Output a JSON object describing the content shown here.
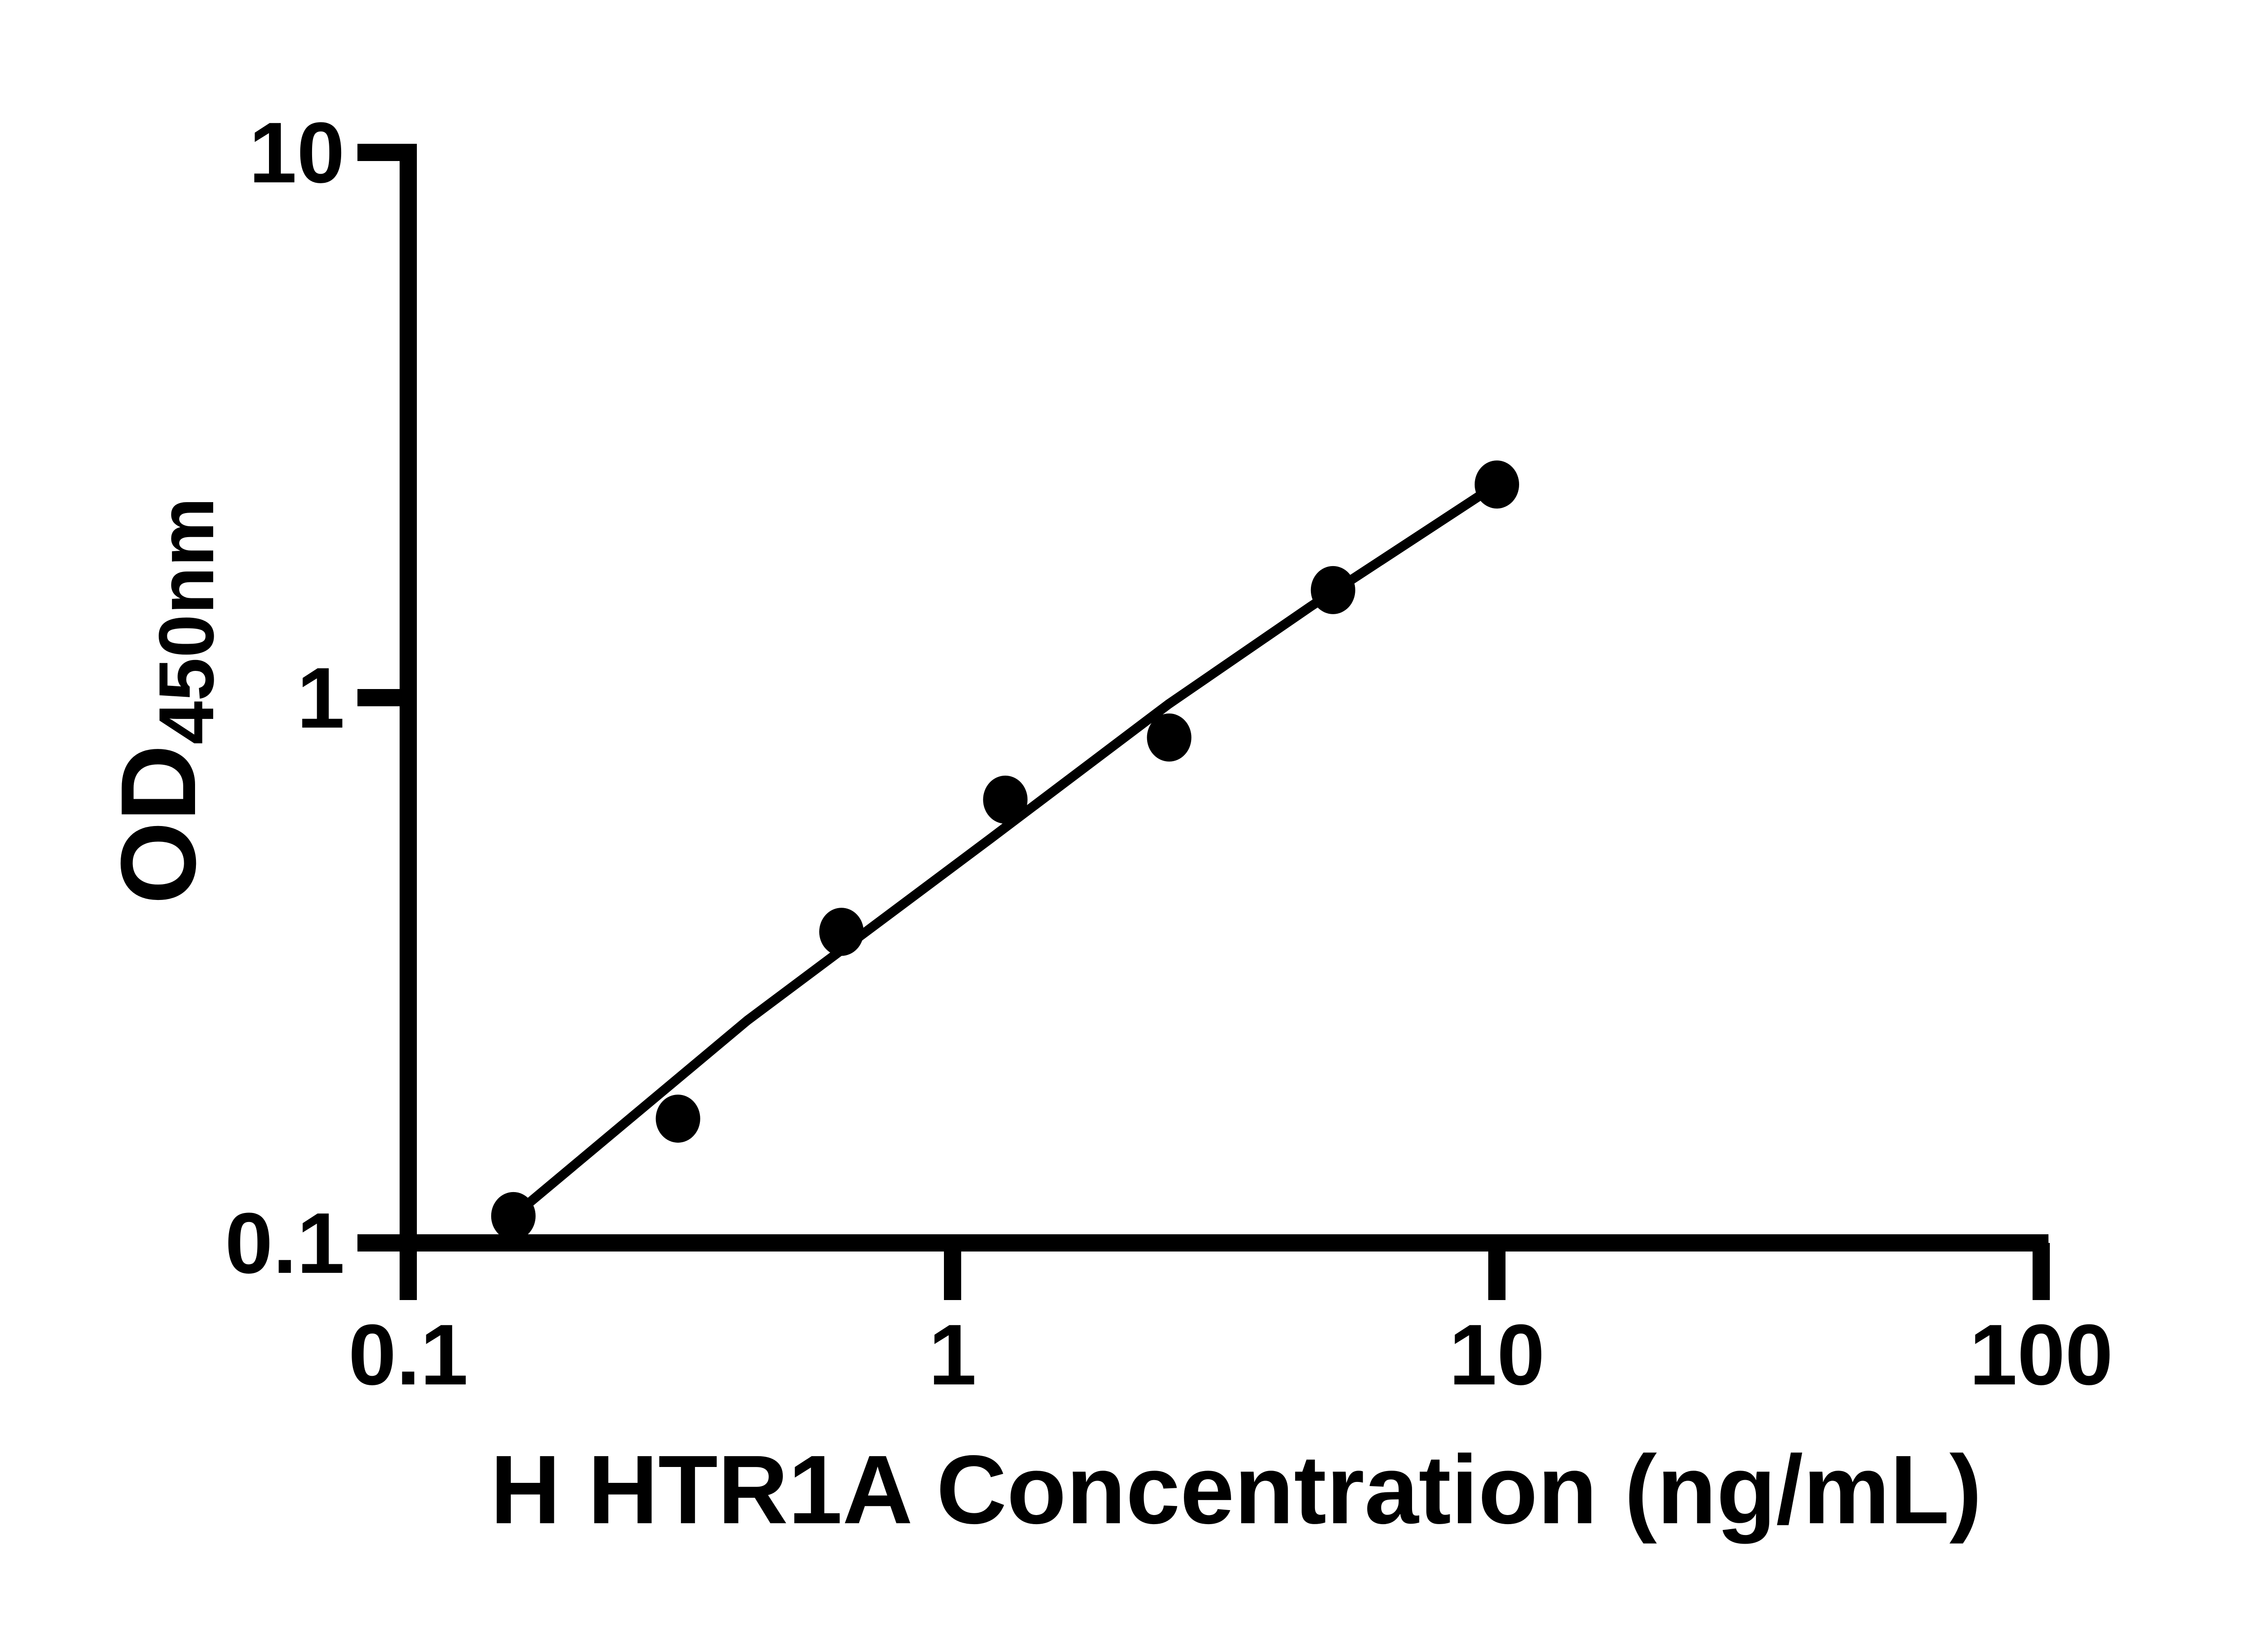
{
  "figure": {
    "background_color": "#ffffff",
    "ink_color": "#000000"
  },
  "chart_data": {
    "type": "scatter",
    "title": "",
    "xlabel": "H HTR1A Concentration (ng/mL)",
    "ylabel_main": "OD",
    "ylabel_sub": "450nm",
    "x_scale": "log",
    "y_scale": "log",
    "xlim": [
      0.1,
      100
    ],
    "ylim": [
      0.1,
      10
    ],
    "grid": false,
    "legend": null,
    "x_ticks": [
      {
        "value": 0.1,
        "label": "0.1"
      },
      {
        "value": 1,
        "label": "1"
      },
      {
        "value": 10,
        "label": "10"
      },
      {
        "value": 100,
        "label": "100"
      }
    ],
    "y_ticks": [
      {
        "value": 10,
        "label": "10"
      },
      {
        "value": 1,
        "label": "1"
      },
      {
        "value": 0.1,
        "label": "0.1"
      }
    ],
    "series": [
      {
        "name": "standard-points",
        "type": "scatter",
        "marker": "filled-circle",
        "points": [
          {
            "x": 0.156,
            "y": 0.112
          },
          {
            "x": 0.313,
            "y": 0.169
          },
          {
            "x": 0.625,
            "y": 0.372
          },
          {
            "x": 1.25,
            "y": 0.65
          },
          {
            "x": 2.5,
            "y": 0.845
          },
          {
            "x": 5,
            "y": 1.575
          },
          {
            "x": 10,
            "y": 2.46
          }
        ]
      },
      {
        "name": "fit-line",
        "type": "line",
        "points": [
          {
            "x": 0.156,
            "y": 0.112
          },
          {
            "x": 0.42,
            "y": 0.256
          },
          {
            "x": 1.17,
            "y": 0.55
          },
          {
            "x": 2.49,
            "y": 0.972
          },
          {
            "x": 4.55,
            "y": 1.47
          },
          {
            "x": 10,
            "y": 2.46
          }
        ]
      }
    ]
  }
}
